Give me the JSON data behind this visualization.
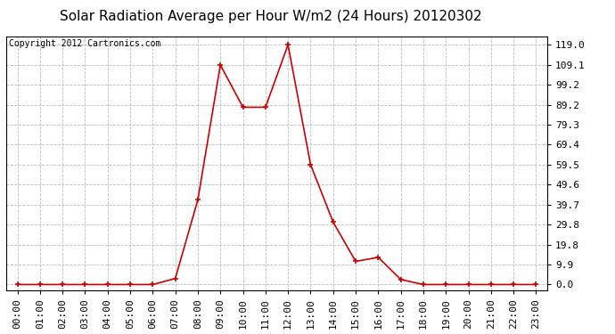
{
  "title": "Solar Radiation Average per Hour W/m2 (24 Hours) 20120302",
  "copyright_text": "Copyright 2012 Cartronics.com",
  "hours": [
    0,
    1,
    2,
    3,
    4,
    5,
    6,
    7,
    8,
    9,
    10,
    11,
    12,
    13,
    14,
    15,
    16,
    17,
    18,
    19,
    20,
    21,
    22,
    23
  ],
  "values": [
    0.0,
    0.0,
    0.0,
    0.0,
    0.0,
    0.0,
    0.0,
    3.0,
    42.0,
    109.0,
    88.0,
    88.0,
    119.0,
    59.5,
    31.0,
    11.5,
    13.5,
    2.5,
    0.0,
    0.0,
    0.0,
    0.0,
    0.0,
    0.0
  ],
  "x_labels": [
    "00:00",
    "01:00",
    "02:00",
    "03:00",
    "04:00",
    "05:00",
    "06:00",
    "07:00",
    "08:00",
    "09:00",
    "10:00",
    "11:00",
    "12:00",
    "13:00",
    "14:00",
    "15:00",
    "16:00",
    "17:00",
    "18:00",
    "19:00",
    "20:00",
    "21:00",
    "22:00",
    "23:00"
  ],
  "y_ticks": [
    0.0,
    9.9,
    19.8,
    29.8,
    39.7,
    49.6,
    59.5,
    69.4,
    79.3,
    89.2,
    99.2,
    109.1,
    119.0
  ],
  "line_color": "#cc0000",
  "marker_color": "#cc0000",
  "bg_color": "#ffffff",
  "grid_color": "#bbbbbb",
  "title_fontsize": 11,
  "copyright_fontsize": 7,
  "tick_fontsize": 8,
  "ylim_min": -3,
  "ylim_max": 123
}
